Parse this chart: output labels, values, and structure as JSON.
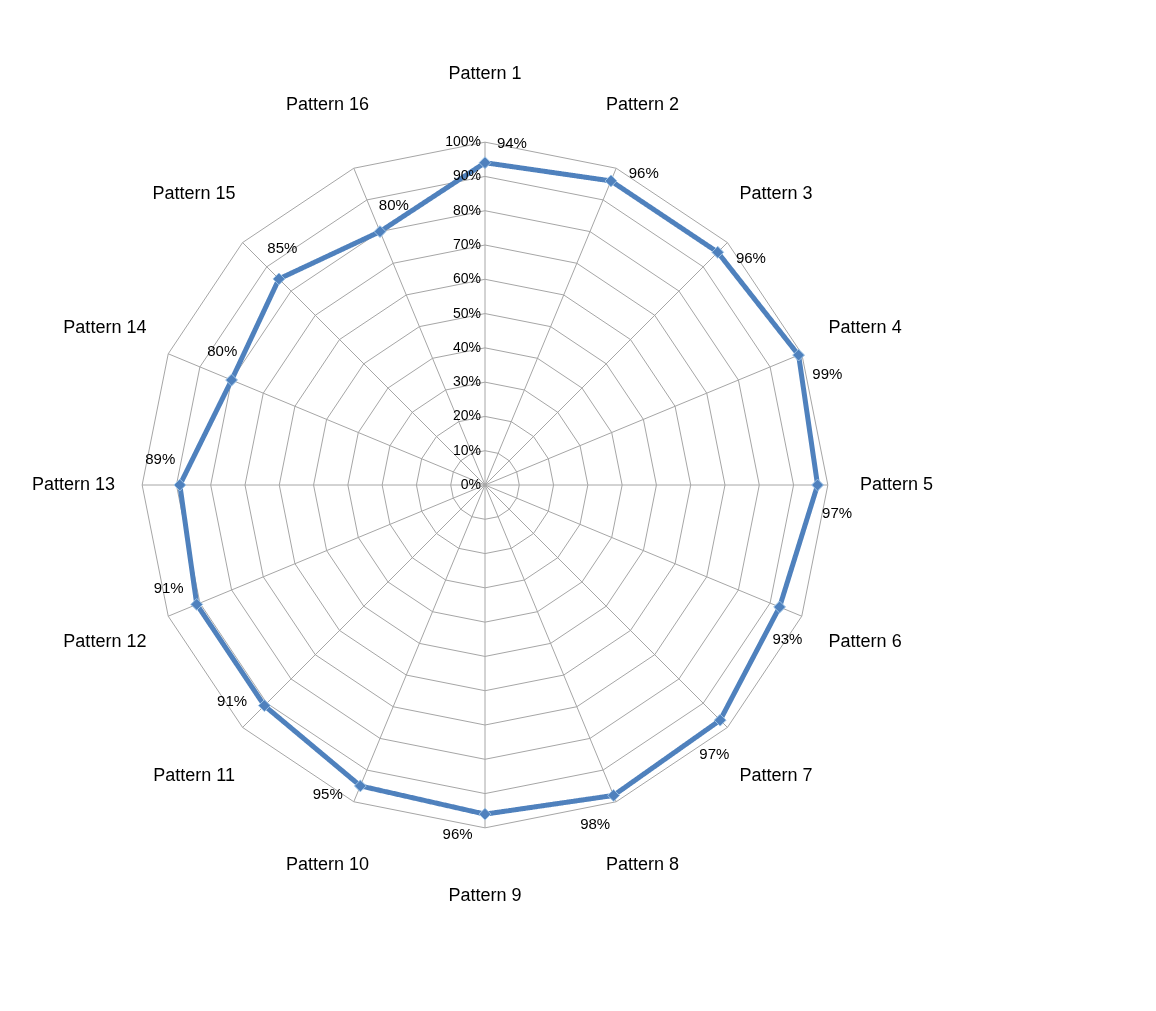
{
  "chart_data": {
    "type": "radar",
    "categories": [
      "Pattern 1",
      "Pattern 2",
      "Pattern 3",
      "Pattern 4",
      "Pattern 5",
      "Pattern 6",
      "Pattern 7",
      "Pattern 8",
      "Pattern 9",
      "Pattern 10",
      "Pattern 11",
      "Pattern 12",
      "Pattern 13",
      "Pattern 14",
      "Pattern 15",
      "Pattern 16"
    ],
    "series": [
      {
        "color": "#4f81bd",
        "values": [
          94,
          96,
          96,
          99,
          97,
          93,
          97,
          98,
          96,
          95,
          91,
          91,
          89,
          80,
          85,
          80
        ],
        "value_labels": [
          "94%",
          "96%",
          "96%",
          "99%",
          "97%",
          "93%",
          "97%",
          "98%",
          "96%",
          "95%",
          "91%",
          "91%",
          "89%",
          "80%",
          "85%",
          "80%"
        ]
      }
    ],
    "ylim": [
      0,
      100
    ],
    "yticks": [
      {
        "value": 0,
        "label": "0%"
      },
      {
        "value": 10,
        "label": "10%"
      },
      {
        "value": 20,
        "label": "20%"
      },
      {
        "value": 30,
        "label": "30%"
      },
      {
        "value": 40,
        "label": "40%"
      },
      {
        "value": 50,
        "label": "50%"
      },
      {
        "value": 60,
        "label": "60%"
      },
      {
        "value": 70,
        "label": "70%"
      },
      {
        "value": 80,
        "label": "80%"
      },
      {
        "value": 90,
        "label": "90%"
      },
      {
        "value": 100,
        "label": "100%"
      }
    ],
    "grid": true,
    "marker": "diamond",
    "line_style": "solid"
  }
}
